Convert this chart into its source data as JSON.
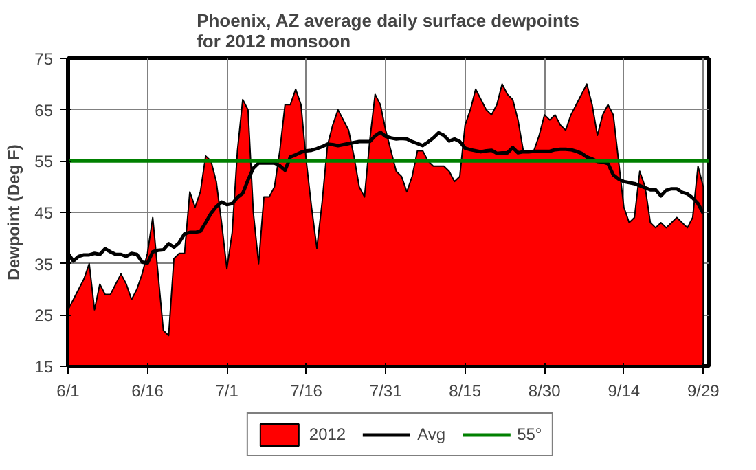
{
  "chart_data": {
    "type": "area",
    "title": "Phoenix, AZ average daily surface dewpoints\nfor 2012 monsoon",
    "ylabel": "Dewpoint (Deg F)",
    "x": [
      "2012-06-01",
      "2012-06-02",
      "2012-06-03",
      "2012-06-04",
      "2012-06-05",
      "2012-06-06",
      "2012-06-07",
      "2012-06-08",
      "2012-06-09",
      "2012-06-10",
      "2012-06-11",
      "2012-06-12",
      "2012-06-13",
      "2012-06-14",
      "2012-06-15",
      "2012-06-16",
      "2012-06-17",
      "2012-06-18",
      "2012-06-19",
      "2012-06-20",
      "2012-06-21",
      "2012-06-22",
      "2012-06-23",
      "2012-06-24",
      "2012-06-25",
      "2012-06-26",
      "2012-06-27",
      "2012-06-28",
      "2012-06-29",
      "2012-06-30",
      "2012-07-01",
      "2012-07-02",
      "2012-07-03",
      "2012-07-04",
      "2012-07-05",
      "2012-07-06",
      "2012-07-07",
      "2012-07-08",
      "2012-07-09",
      "2012-07-10",
      "2012-07-11",
      "2012-07-12",
      "2012-07-13",
      "2012-07-14",
      "2012-07-15",
      "2012-07-16",
      "2012-07-17",
      "2012-07-18",
      "2012-07-19",
      "2012-07-20",
      "2012-07-21",
      "2012-07-22",
      "2012-07-23",
      "2012-07-24",
      "2012-07-25",
      "2012-07-26",
      "2012-07-27",
      "2012-07-28",
      "2012-07-29",
      "2012-07-30",
      "2012-07-31",
      "2012-08-01",
      "2012-08-02",
      "2012-08-03",
      "2012-08-04",
      "2012-08-05",
      "2012-08-06",
      "2012-08-07",
      "2012-08-08",
      "2012-08-09",
      "2012-08-10",
      "2012-08-11",
      "2012-08-12",
      "2012-08-13",
      "2012-08-14",
      "2012-08-15",
      "2012-08-16",
      "2012-08-17",
      "2012-08-18",
      "2012-08-19",
      "2012-08-20",
      "2012-08-21",
      "2012-08-22",
      "2012-08-23",
      "2012-08-24",
      "2012-08-25",
      "2012-08-26",
      "2012-08-27",
      "2012-08-28",
      "2012-08-29",
      "2012-08-30",
      "2012-08-31",
      "2012-09-01",
      "2012-09-02",
      "2012-09-03",
      "2012-09-04",
      "2012-09-05",
      "2012-09-06",
      "2012-09-07",
      "2012-09-08",
      "2012-09-09",
      "2012-09-10",
      "2012-09-11",
      "2012-09-12",
      "2012-09-13",
      "2012-09-14",
      "2012-09-15",
      "2012-09-16",
      "2012-09-17",
      "2012-09-18",
      "2012-09-19",
      "2012-09-20",
      "2012-09-21",
      "2012-09-22",
      "2012-09-23",
      "2012-09-24",
      "2012-09-25",
      "2012-09-26",
      "2012-09-27",
      "2012-09-28",
      "2012-09-29"
    ],
    "series": [
      {
        "name": "2012",
        "color": "#ff0000",
        "values": [
          26,
          28,
          30,
          32,
          35,
          26,
          31,
          29,
          29,
          31,
          33,
          31,
          28,
          30,
          33,
          37,
          44,
          33,
          22,
          21,
          36,
          37,
          37,
          49,
          46,
          49,
          56,
          55,
          51,
          43,
          34,
          41,
          57,
          67,
          65,
          45,
          35,
          48,
          48,
          50,
          57,
          66,
          66,
          69,
          66,
          55,
          46,
          38,
          47,
          58,
          62,
          65,
          63,
          61,
          56,
          50,
          48,
          59,
          68,
          66,
          61,
          57,
          53,
          52,
          49,
          52,
          57,
          57,
          55,
          54,
          54,
          54,
          53,
          51,
          52,
          62,
          65,
          69,
          67,
          65,
          64,
          66,
          70,
          68,
          67,
          63,
          57,
          57,
          57,
          60,
          64,
          63,
          64,
          62,
          61,
          64,
          66,
          68,
          70,
          66,
          60,
          64,
          66,
          64,
          55,
          46,
          43,
          44,
          53,
          50,
          43,
          42,
          43,
          42,
          43,
          44,
          43,
          42,
          44,
          54,
          50
        ]
      },
      {
        "name": "Avg",
        "type": "line",
        "color": "#000000",
        "values": [
          37,
          35.5,
          36.4,
          36.7,
          36.7,
          37,
          36.8,
          37.9,
          37.3,
          36.8,
          36.8,
          36.4,
          37,
          36.8,
          35.3,
          35.1,
          37.3,
          37.6,
          37.7,
          38.9,
          38.2,
          39.1,
          40.8,
          41.1,
          41.1,
          41.3,
          43,
          44.8,
          46.1,
          47,
          46.5,
          46.7,
          47.9,
          48.7,
          51.3,
          53.6,
          54.6,
          54.6,
          54.6,
          54.6,
          54.1,
          53.2,
          55.8,
          56.2,
          56.7,
          57,
          57.1,
          57.4,
          57.8,
          58.3,
          58.2,
          58,
          58.2,
          58.4,
          58.6,
          58.8,
          58.8,
          58.8,
          59.9,
          60.6,
          59.8,
          59.5,
          59.3,
          59.4,
          59.3,
          58.8,
          58.4,
          58,
          58.7,
          59.5,
          60.5,
          60,
          58.9,
          59.3,
          58.8,
          57.5,
          57.2,
          57,
          56.8,
          57,
          57.1,
          56.5,
          56.6,
          56.6,
          57.6,
          56.6,
          56.8,
          56.8,
          56.9,
          56.9,
          56.9,
          56.9,
          57.2,
          57.3,
          57.3,
          57.2,
          56.9,
          56.5,
          55.8,
          55.4,
          54.9,
          54.8,
          54.5,
          52.3,
          51.5,
          51,
          50.8,
          50.6,
          50.2,
          49.8,
          49.4,
          49.4,
          48.2,
          49.3,
          49.6,
          49.6,
          48.9,
          48.6,
          47.8,
          46.7,
          44.8
        ]
      }
    ],
    "ref_lines": [
      {
        "axis": "y",
        "value": 55,
        "label": "55°",
        "color": "#008000"
      }
    ],
    "xlim": [
      "2012-06-01",
      "2012-09-30"
    ],
    "xticks": [
      {
        "value": "2012-06-01",
        "label": "6/1"
      },
      {
        "value": "2012-06-16",
        "label": "6/16"
      },
      {
        "value": "2012-07-01",
        "label": "7/1"
      },
      {
        "value": "2012-07-16",
        "label": "7/16"
      },
      {
        "value": "2012-07-31",
        "label": "7/31"
      },
      {
        "value": "2012-08-15",
        "label": "8/15"
      },
      {
        "value": "2012-08-30",
        "label": "8/30"
      },
      {
        "value": "2012-09-14",
        "label": "9/14"
      },
      {
        "value": "2012-09-29",
        "label": "9/29"
      }
    ],
    "ylim": [
      15,
      75
    ],
    "yticks": [
      15,
      25,
      35,
      45,
      55,
      65,
      75
    ],
    "grid": true,
    "legend": "bottom"
  }
}
